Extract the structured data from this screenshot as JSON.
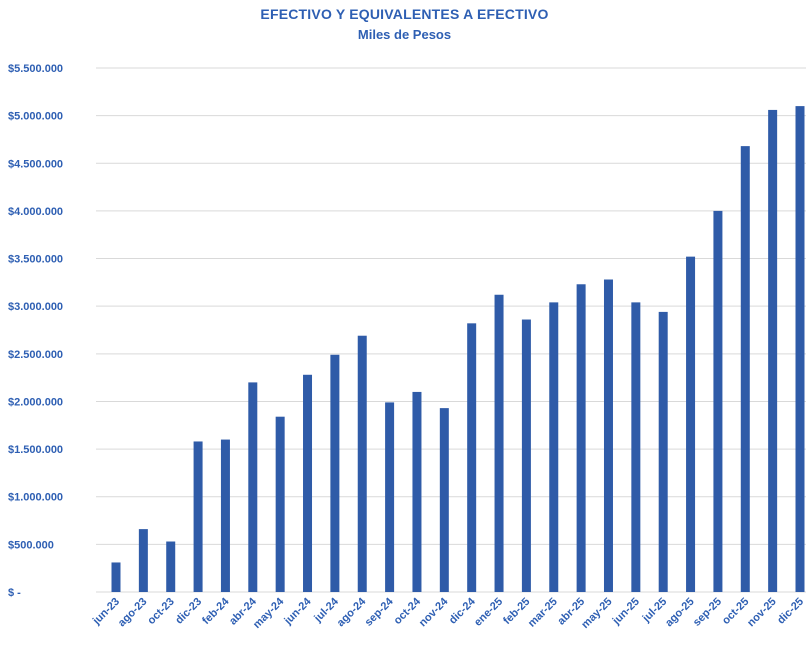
{
  "chart_data": {
    "type": "bar",
    "title": "EFECTIVO Y EQUIVALENTES A EFECTIVO",
    "subtitle": "Miles de Pesos",
    "xlabel": "",
    "ylabel": "",
    "ylim": [
      0,
      5500000
    ],
    "yticks": [
      0,
      500000,
      1000000,
      1500000,
      2000000,
      2500000,
      3000000,
      3500000,
      4000000,
      4500000,
      5000000,
      5500000
    ],
    "ytick_labels": [
      "$ -",
      "$500.000",
      "$1.000.000",
      "$1.500.000",
      "$2.000.000",
      "$2.500.000",
      "$3.000.000",
      "$3.500.000",
      "$4.000.000",
      "$4.500.000",
      "$5.000.000",
      "$5.500.000"
    ],
    "grid": true,
    "legend": "none",
    "bar_color": "#2f5ba8",
    "grid_color": "#d9d9d9",
    "label_color": "#2e5fb3",
    "categories": [
      "jun-23",
      "ago-23",
      "oct-23",
      "dic-23",
      "feb-24",
      "abr-24",
      "may-24",
      "jun-24",
      "jul-24",
      "ago-24",
      "sep-24",
      "oct-24",
      "nov-24",
      "dic-24",
      "ene-25",
      "feb-25",
      "mar-25",
      "abr-25",
      "may-25",
      "jun-25",
      "jul-25",
      "ago-25",
      "sep-25",
      "oct-25",
      "nov-25",
      "dic-25"
    ],
    "values": [
      310000,
      660000,
      530000,
      1580000,
      1600000,
      2200000,
      1840000,
      2280000,
      2490000,
      2690000,
      1990000,
      2100000,
      1930000,
      2820000,
      3120000,
      2860000,
      3040000,
      3230000,
      3280000,
      3040000,
      2940000,
      3520000,
      4000000,
      4680000,
      5060000,
      5100000
    ]
  }
}
